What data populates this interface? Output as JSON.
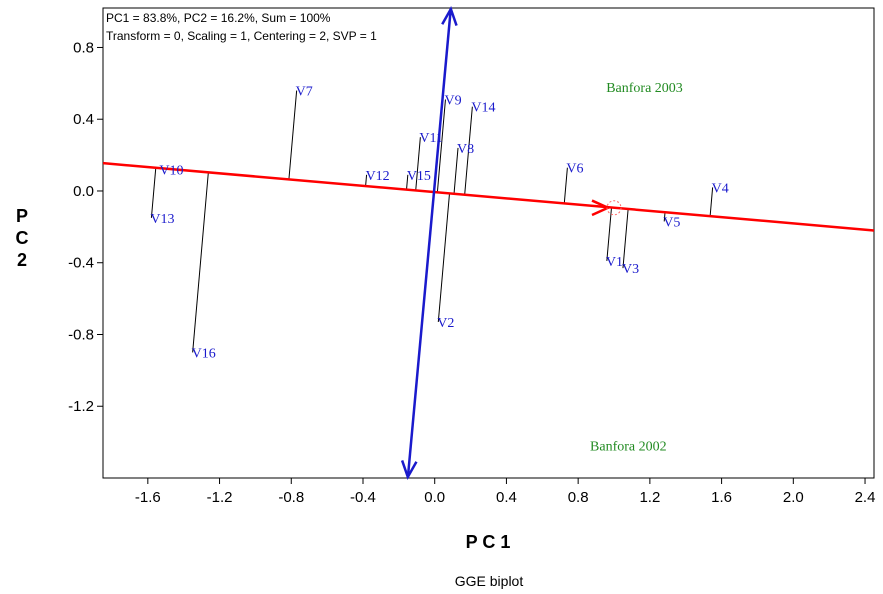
{
  "chart_data": {
    "type": "scatter",
    "title": "",
    "caption": "GGE biplot",
    "xlabel": "P C 1",
    "ylabel": "P C 2",
    "xlim": [
      -1.85,
      2.45
    ],
    "ylim": [
      -1.6,
      1.02
    ],
    "xticks": [
      -1.6,
      -1.2,
      -0.8,
      -0.4,
      0.0,
      0.4,
      0.8,
      1.2,
      1.6,
      2.0,
      2.4
    ],
    "xtick_labels": [
      "-1.6",
      "-1.2",
      "-0.8",
      "-0.4",
      "0.0",
      "0.4",
      "0.8",
      "1.2",
      "1.6",
      "2.0",
      "2.4"
    ],
    "yticks": [
      0.8,
      0.4,
      0.0,
      -0.4,
      -0.8,
      -1.2
    ],
    "ytick_labels": [
      "0.8",
      "0.4",
      "0.0",
      "-0.4",
      "-0.8",
      "-1.2"
    ],
    "annotations": [
      "PC1 = 83.8%, PC2 = 16.2%, Sum = 100%",
      "Transform = 0, Scaling = 1, Centering = 2, SVP = 1"
    ],
    "environments": [
      {
        "name": "Banfora 2003",
        "x": 1.17,
        "y": 0.58
      },
      {
        "name": "Banfora 2002",
        "x": 1.08,
        "y": -1.42
      }
    ],
    "genotypes": [
      {
        "name": "V1",
        "x": 0.96,
        "y": -0.39
      },
      {
        "name": "V2",
        "x": 0.02,
        "y": -0.73
      },
      {
        "name": "V3",
        "x": 1.05,
        "y": -0.43
      },
      {
        "name": "V4",
        "x": 1.55,
        "y": 0.02
      },
      {
        "name": "V5",
        "x": 1.28,
        "y": -0.17
      },
      {
        "name": "V6",
        "x": 0.74,
        "y": 0.13
      },
      {
        "name": "V7",
        "x": -0.77,
        "y": 0.56
      },
      {
        "name": "V8",
        "x": 0.13,
        "y": 0.24
      },
      {
        "name": "V9",
        "x": 0.06,
        "y": 0.51
      },
      {
        "name": "V10",
        "x": -1.53,
        "y": 0.12
      },
      {
        "name": "V11",
        "x": -0.08,
        "y": 0.3
      },
      {
        "name": "V12",
        "x": -0.38,
        "y": 0.09
      },
      {
        "name": "V13",
        "x": -1.58,
        "y": -0.15
      },
      {
        "name": "V14",
        "x": 0.21,
        "y": 0.47
      },
      {
        "name": "V15",
        "x": -0.15,
        "y": 0.09
      },
      {
        "name": "V16",
        "x": -1.35,
        "y": -0.9
      }
    ],
    "series": [
      {
        "name": "",
        "type": "line",
        "color": "#ff0000",
        "points": [
          [
            -1.85,
            0.155
          ],
          [
            2.45,
            -0.22
          ]
        ]
      },
      {
        "name": "",
        "type": "line",
        "color": "#1a1acc",
        "points": [
          [
            0.09,
            1.02
          ],
          [
            -0.15,
            -1.6
          ]
        ]
      }
    ],
    "accent_colors": {
      "genotype": "#1a1acc",
      "environment": "#228b22",
      "average_environment_axis": "#ff0000",
      "ate_ordinate": "#1a1acc",
      "projection": "#000000"
    }
  }
}
